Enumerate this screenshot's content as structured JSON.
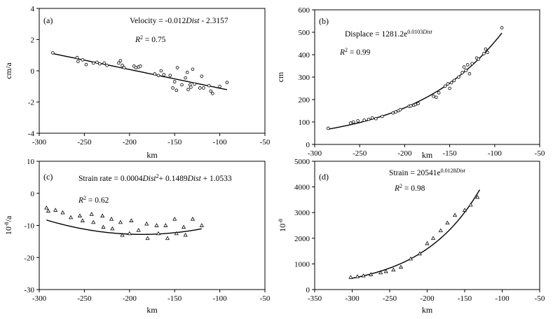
{
  "chart_data": [
    {
      "id": "a",
      "type": "scatter",
      "panel_label": "(a)",
      "xlabel": "km",
      "ylabel": "cm/a",
      "xlim": [
        -300,
        -50
      ],
      "ylim": [
        -4,
        4
      ],
      "xticks": [
        -300,
        -250,
        -200,
        -150,
        -100,
        -50
      ],
      "yticks": [
        -4,
        -2,
        0,
        2,
        4
      ],
      "marker": "circle",
      "equation": {
        "prefix": "Velocity = -0.012",
        "var": "Dist",
        "suffix": " - 2.3157"
      },
      "r2": {
        "label": "R",
        "exp": "2",
        "value": " = 0.75"
      },
      "fit": {
        "kind": "linear",
        "a": -0.012,
        "b": -2.3157,
        "x_range": [
          -285,
          -92
        ]
      },
      "points": {
        "x": [
          -285,
          -258,
          -257,
          -252,
          -248,
          -240,
          -236,
          -233,
          -228,
          -225,
          -212,
          -210,
          -208,
          -206,
          -195,
          -193,
          -190,
          -188,
          -172,
          -168,
          -165,
          -162,
          -155,
          -152,
          -150,
          -148,
          -147,
          -142,
          -138,
          -136,
          -135,
          -133,
          -132,
          -130,
          -128,
          -122,
          -120,
          -118,
          -112,
          -110,
          -108,
          -100,
          -92
        ],
        "y": [
          1.15,
          0.85,
          0.6,
          0.7,
          0.4,
          0.5,
          0.55,
          0.45,
          0.5,
          0.35,
          0.5,
          0.65,
          0.35,
          0.2,
          0.3,
          0.2,
          0.25,
          0.3,
          -0.2,
          -0.3,
          0.0,
          -0.25,
          -0.3,
          -1.1,
          -0.7,
          -1.25,
          0.2,
          -0.9,
          -0.45,
          -0.1,
          -1.2,
          -0.9,
          -1.05,
          0.1,
          -0.85,
          -1.1,
          -0.35,
          -1.1,
          -0.95,
          -1.3,
          -1.45,
          -1.0,
          -0.75
        ]
      }
    },
    {
      "id": "b",
      "type": "scatter",
      "panel_label": "(b)",
      "xlabel": "km",
      "ylabel": "cm",
      "xlim": [
        -300,
        -50
      ],
      "ylim": [
        0,
        600
      ],
      "xticks": [
        -300,
        -250,
        -200,
        -150,
        -100,
        -50
      ],
      "yticks": [
        0,
        100,
        200,
        300,
        400,
        500,
        600
      ],
      "marker": "circle",
      "equation": {
        "prefix": "Displace = 1281.2e",
        "sup_num": "0.0103",
        "sup_var": "Dist"
      },
      "r2": {
        "label": "R",
        "exp": "2",
        "value": " = 0.99"
      },
      "fit": {
        "kind": "exponential",
        "a": 1281.2,
        "b": 0.0103,
        "x_range": [
          -285,
          -92
        ]
      },
      "points": {
        "x": [
          -285,
          -260,
          -257,
          -252,
          -245,
          -240,
          -236,
          -232,
          -225,
          -213,
          -210,
          -207,
          -205,
          -195,
          -193,
          -190,
          -188,
          -185,
          -168,
          -165,
          -162,
          -155,
          -152,
          -150,
          -148,
          -145,
          -140,
          -136,
          -134,
          -132,
          -130,
          -128,
          -125,
          -120,
          -118,
          -112,
          -110,
          -108,
          -92
        ],
        "y": [
          72,
          95,
          100,
          105,
          108,
          112,
          118,
          115,
          125,
          140,
          145,
          150,
          155,
          170,
          172,
          175,
          178,
          182,
          215,
          210,
          230,
          260,
          270,
          250,
          275,
          285,
          300,
          320,
          345,
          330,
          355,
          315,
          360,
          385,
          380,
          405,
          425,
          410,
          520
        ]
      }
    },
    {
      "id": "c",
      "type": "scatter",
      "panel_label": "(c)",
      "xlabel": "km",
      "ylabel": "10^-8/a",
      "ylabel_base": "10",
      "ylabel_exp": "-8",
      "ylabel_rest": "/a",
      "xlim": [
        -300,
        -50
      ],
      "ylim": [
        -30,
        10
      ],
      "xticks": [
        -300,
        -250,
        -200,
        -150,
        -100,
        -50
      ],
      "yticks": [
        -30,
        -20,
        -10,
        0,
        10
      ],
      "marker": "triangle",
      "equation": {
        "prefix": "Strain rate = 0.0004",
        "var1": "Dist",
        "exp1": "2",
        "mid": "+ 0.1489",
        "var2": "Dist",
        "suffix": " + 1.0533"
      },
      "r2": {
        "label": "R",
        "exp": "2",
        "value": " = 0.62"
      },
      "fit": {
        "kind": "quadratic",
        "a": 0.0004,
        "b": 0.1489,
        "c": 1.0533,
        "x_range": [
          -292,
          -120
        ]
      },
      "points": {
        "x": [
          -292,
          -290,
          -282,
          -274,
          -265,
          -255,
          -252,
          -242,
          -240,
          -230,
          -229,
          -220,
          -219,
          -210,
          -208,
          -200,
          -198,
          -190,
          -181,
          -180,
          -170,
          -168,
          -160,
          -158,
          -150,
          -148,
          -140,
          -138,
          -130,
          -120
        ],
        "y": [
          -4.5,
          -5.5,
          -5.2,
          -6.0,
          -7.5,
          -7.0,
          -8.5,
          -6.5,
          -9.0,
          -7.0,
          -10.5,
          -8.0,
          -11.0,
          -9.0,
          -13.0,
          -12.5,
          -8.5,
          -11.5,
          -9.5,
          -14.0,
          -10.0,
          -12.5,
          -10.0,
          -14.0,
          -8.0,
          -12.5,
          -10.5,
          -13.0,
          -8.0,
          -10.0
        ]
      }
    },
    {
      "id": "d",
      "type": "scatter",
      "panel_label": "(d)",
      "xlabel": "km",
      "ylabel": "10^-8",
      "ylabel_base": "10",
      "ylabel_exp": "-8",
      "ylabel_rest": "",
      "xlim": [
        -350,
        -50
      ],
      "ylim": [
        0,
        5000
      ],
      "xticks": [
        -350,
        -300,
        -250,
        -200,
        -150,
        -100,
        -50
      ],
      "yticks": [
        0,
        1000,
        2000,
        3000,
        4000,
        5000
      ],
      "marker": "triangle",
      "equation": {
        "prefix": "Strain = 20541e",
        "sup_num": "0.0128",
        "sup_var": "Dist"
      },
      "r2": {
        "label": "R",
        "exp": "2",
        "value": " = 0.98"
      },
      "fit": {
        "kind": "exponential",
        "a": 20541,
        "b": 0.0128,
        "x_range": [
          -302,
          -130
        ]
      },
      "points": {
        "x": [
          -302,
          -293,
          -285,
          -275,
          -262,
          -255,
          -245,
          -235,
          -222,
          -210,
          -200,
          -192,
          -182,
          -173,
          -163,
          -150,
          -142,
          -133
        ],
        "y": [
          480,
          510,
          540,
          590,
          660,
          710,
          770,
          880,
          1200,
          1400,
          1800,
          2000,
          2300,
          2600,
          2900,
          3100,
          3300,
          3600
        ]
      }
    }
  ]
}
